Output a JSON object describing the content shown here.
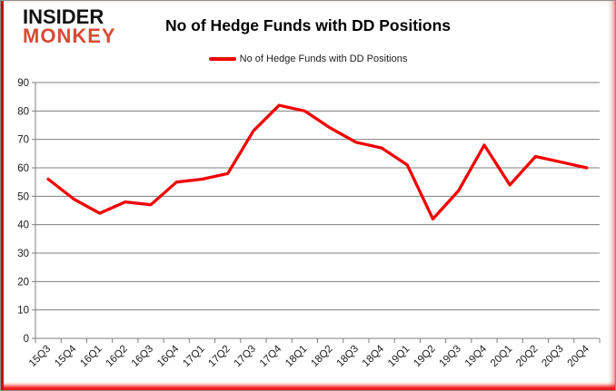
{
  "header": {
    "logo_line1": "INSIDER",
    "logo_line2": "MONKEY",
    "title": "No of Hedge Funds with DD Positions"
  },
  "legend": {
    "label": "No of Hedge Funds with DD Positions"
  },
  "chart_data": {
    "type": "line",
    "title": "No of Hedge Funds with DD Positions",
    "categories": [
      "15Q3",
      "15Q4",
      "16Q1",
      "16Q2",
      "16Q3",
      "16Q4",
      "17Q1",
      "17Q2",
      "17Q3",
      "17Q4",
      "18Q1",
      "18Q2",
      "18Q3",
      "18Q4",
      "19Q1",
      "19Q2",
      "19Q3",
      "19Q4",
      "20Q1",
      "20Q2",
      "20Q3",
      "20Q4"
    ],
    "series": [
      {
        "name": "No of Hedge Funds with DD Positions",
        "color": "#f20000",
        "values": [
          56,
          49,
          44,
          48,
          47,
          55,
          56,
          58,
          73,
          82,
          80,
          74,
          69,
          67,
          61,
          42,
          52,
          68,
          54,
          64,
          62,
          60
        ]
      }
    ],
    "xlabel": "",
    "ylabel": "",
    "ylim": [
      0,
      90
    ],
    "ytick_interval": 10,
    "grid": "horizontal",
    "legend_position": "top-center",
    "x_tick_label_rotation": -45
  },
  "colors": {
    "line": "#f20000",
    "grid": "#7f7f7f",
    "axis": "#7f7f7f",
    "tick_label": "#1a1a1a",
    "logo_red": "#d84b35",
    "frame_left_stripe": "#d40000",
    "frame_bottom_band": "#f01010",
    "frame_right_glow": "#ffb9b9"
  }
}
